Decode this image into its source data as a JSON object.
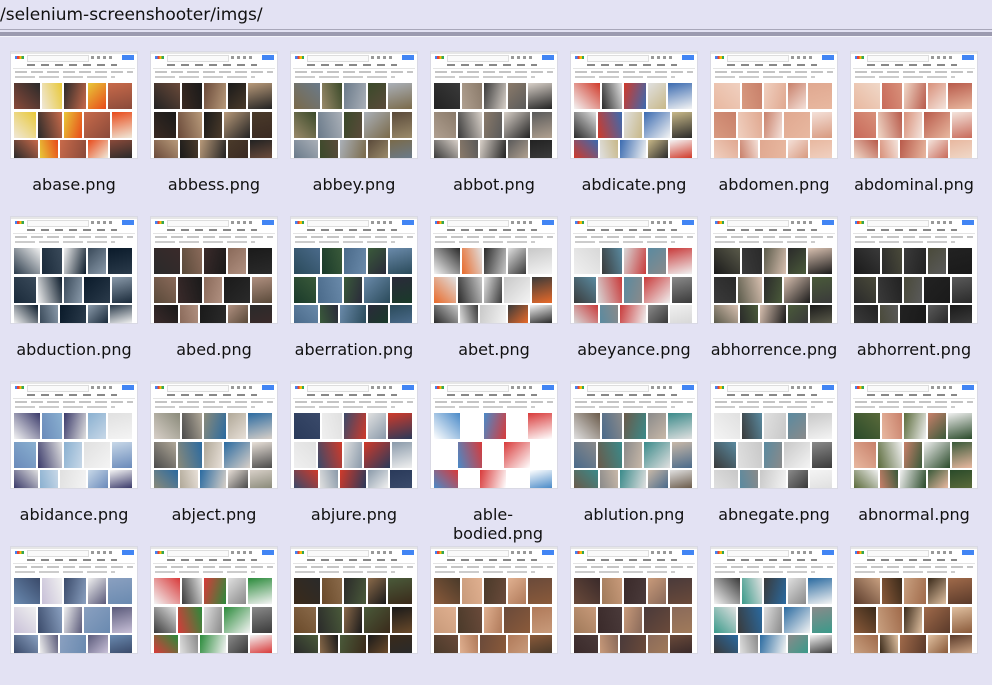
{
  "path": "/selenium-screenshooter/imgs/",
  "files": [
    {
      "name": "abase.png",
      "palette": [
        "#8a4a3a",
        "#f0e8d8",
        "#2a2a2a",
        "#e8c838",
        "#c86a4a",
        "#e84a1a"
      ]
    },
    {
      "name": "abbess.png",
      "palette": [
        "#222222",
        "#3a2a22",
        "#6a4a3a",
        "#1a1a1a",
        "#b89a7a",
        "#4a3a2a"
      ]
    },
    {
      "name": "abbey.png",
      "palette": [
        "#7a6a4a",
        "#9a8a6a",
        "#6a7a8a",
        "#3a4a2a",
        "#aab0b8",
        "#5a4a3a"
      ]
    },
    {
      "name": "abbot.png",
      "palette": [
        "#222222",
        "#b0a090",
        "#3a3a3a",
        "#8a7a6a",
        "#d8d0c8",
        "#5a5a5a"
      ]
    },
    {
      "name": "abdicate.png",
      "palette": [
        "#f4f4f4",
        "#2a2a2a",
        "#d03a2a",
        "#e0e0e0",
        "#3a6ab0",
        "#c8b888"
      ]
    },
    {
      "name": "abdomen.png",
      "palette": [
        "#e8b8a0",
        "#d89a80",
        "#f0d0c0",
        "#c8806a",
        "#e0a890",
        "#f4e0d8"
      ]
    },
    {
      "name": "abdominal.png",
      "palette": [
        "#e8b8a0",
        "#c86a5a",
        "#f0d8c8",
        "#d8907a",
        "#b85a4a",
        "#f4e4dc"
      ]
    },
    {
      "name": "abduction.png",
      "palette": [
        "#2a3a4a",
        "#1a2a3a",
        "#f0f0f0",
        "#3a4a5a",
        "#0a1a2a",
        "#8a9aaa"
      ]
    },
    {
      "name": "abed.png",
      "palette": [
        "#2a2a2a",
        "#5a4a3a",
        "#3a2a2a",
        "#8a6a5a",
        "#1a1a1a",
        "#b09080"
      ]
    },
    {
      "name": "aberration.png",
      "palette": [
        "#2a4a5a",
        "#1a3a2a",
        "#4a6a8a",
        "#3a5a3a",
        "#6a8aaa",
        "#2a2a3a"
      ]
    },
    {
      "name": "abet.png",
      "palette": [
        "#f4f4f4",
        "#e86a2a",
        "#2a2a2a",
        "#e0e0e0",
        "#c8c8c8",
        "#3a3a3a"
      ]
    },
    {
      "name": "abeyance.png",
      "palette": [
        "#f0f0f0",
        "#3a3a3a",
        "#d8d8d8",
        "#5a8aa0",
        "#c83a3a",
        "#8a8a8a"
      ]
    },
    {
      "name": "abhorrence.png",
      "palette": [
        "#1a1a1a",
        "#3a3a3a",
        "#5a5a4a",
        "#2a2a2a",
        "#d8c0b0",
        "#4a5a3a"
      ]
    },
    {
      "name": "abhorrent.png",
      "palette": [
        "#1a1a1a",
        "#2a2a2a",
        "#3a3a3a",
        "#4a4a3a",
        "#222222",
        "#5a5a5a"
      ]
    },
    {
      "name": "abidance.png",
      "palette": [
        "#f4f4f4",
        "#6a8aba",
        "#3a3a6a",
        "#8ab0d0",
        "#e0e0e0",
        "#c8d8e8"
      ]
    },
    {
      "name": "abject.png",
      "palette": [
        "#d8d0c8",
        "#4a4a4a",
        "#8a8a7a",
        "#b0a898",
        "#2a6aa0",
        "#e8e0d8"
      ]
    },
    {
      "name": "abjure.png",
      "palette": [
        "#2a3a5a",
        "#f0f0f0",
        "#3a4a6a",
        "#e0e0e0",
        "#d03a2a",
        "#8a9aaa"
      ]
    },
    {
      "name": "able-bodied.png",
      "palette": [
        "#ffffff",
        "#ffffff",
        "#4a8ac8",
        "#ffffff",
        "#d83a3a",
        "#ffffff"
      ]
    },
    {
      "name": "ablution.png",
      "palette": [
        "#e0e0e0",
        "#4a6a8a",
        "#6a5a4a",
        "#8a8a8a",
        "#3a8a8a",
        "#c8b8a8"
      ]
    },
    {
      "name": "abnegate.png",
      "palette": [
        "#f4f4f4",
        "#3a3a3a",
        "#e0e0e0",
        "#5a8aa0",
        "#c8c8c8",
        "#8a8a8a"
      ]
    },
    {
      "name": "abnormal.png",
      "palette": [
        "#2a4a2a",
        "#e8b8a0",
        "#5a6a3a",
        "#c8806a",
        "#f0f0f0",
        "#3a5a3a"
      ]
    },
    {
      "name": "",
      "palette": [
        "#6a8ab0",
        "#c8c0d8",
        "#3a4a6a",
        "#f0f0f0",
        "#8aa0c0",
        "#5a5a7a"
      ]
    },
    {
      "name": "",
      "palette": [
        "#f4f4f4",
        "#3a3a3a",
        "#d83a3a",
        "#e0e0e0",
        "#2a8a3a",
        "#8a8a8a"
      ]
    },
    {
      "name": "",
      "palette": [
        "#3a2a1a",
        "#6a4a2a",
        "#2a2a2a",
        "#8a6a4a",
        "#4a5a3a",
        "#1a1a1a"
      ]
    },
    {
      "name": "",
      "palette": [
        "#8a5a3a",
        "#c89a7a",
        "#4a3a2a",
        "#e0b090",
        "#6a4a3a",
        "#b07a5a"
      ]
    },
    {
      "name": "",
      "palette": [
        "#6a4a3a",
        "#a07a5a",
        "#3a2a2a",
        "#c89a7a",
        "#4a3a3a",
        "#8a6a5a"
      ]
    },
    {
      "name": "",
      "palette": [
        "#f4f4f4",
        "#3a9a8a",
        "#3a3a3a",
        "#e0e0e0",
        "#2a6aa0",
        "#8a8a8a"
      ]
    },
    {
      "name": "",
      "palette": [
        "#5a3a2a",
        "#8a5a3a",
        "#c8a080",
        "#3a2a1a",
        "#a06a4a",
        "#e0c0a0"
      ]
    }
  ]
}
